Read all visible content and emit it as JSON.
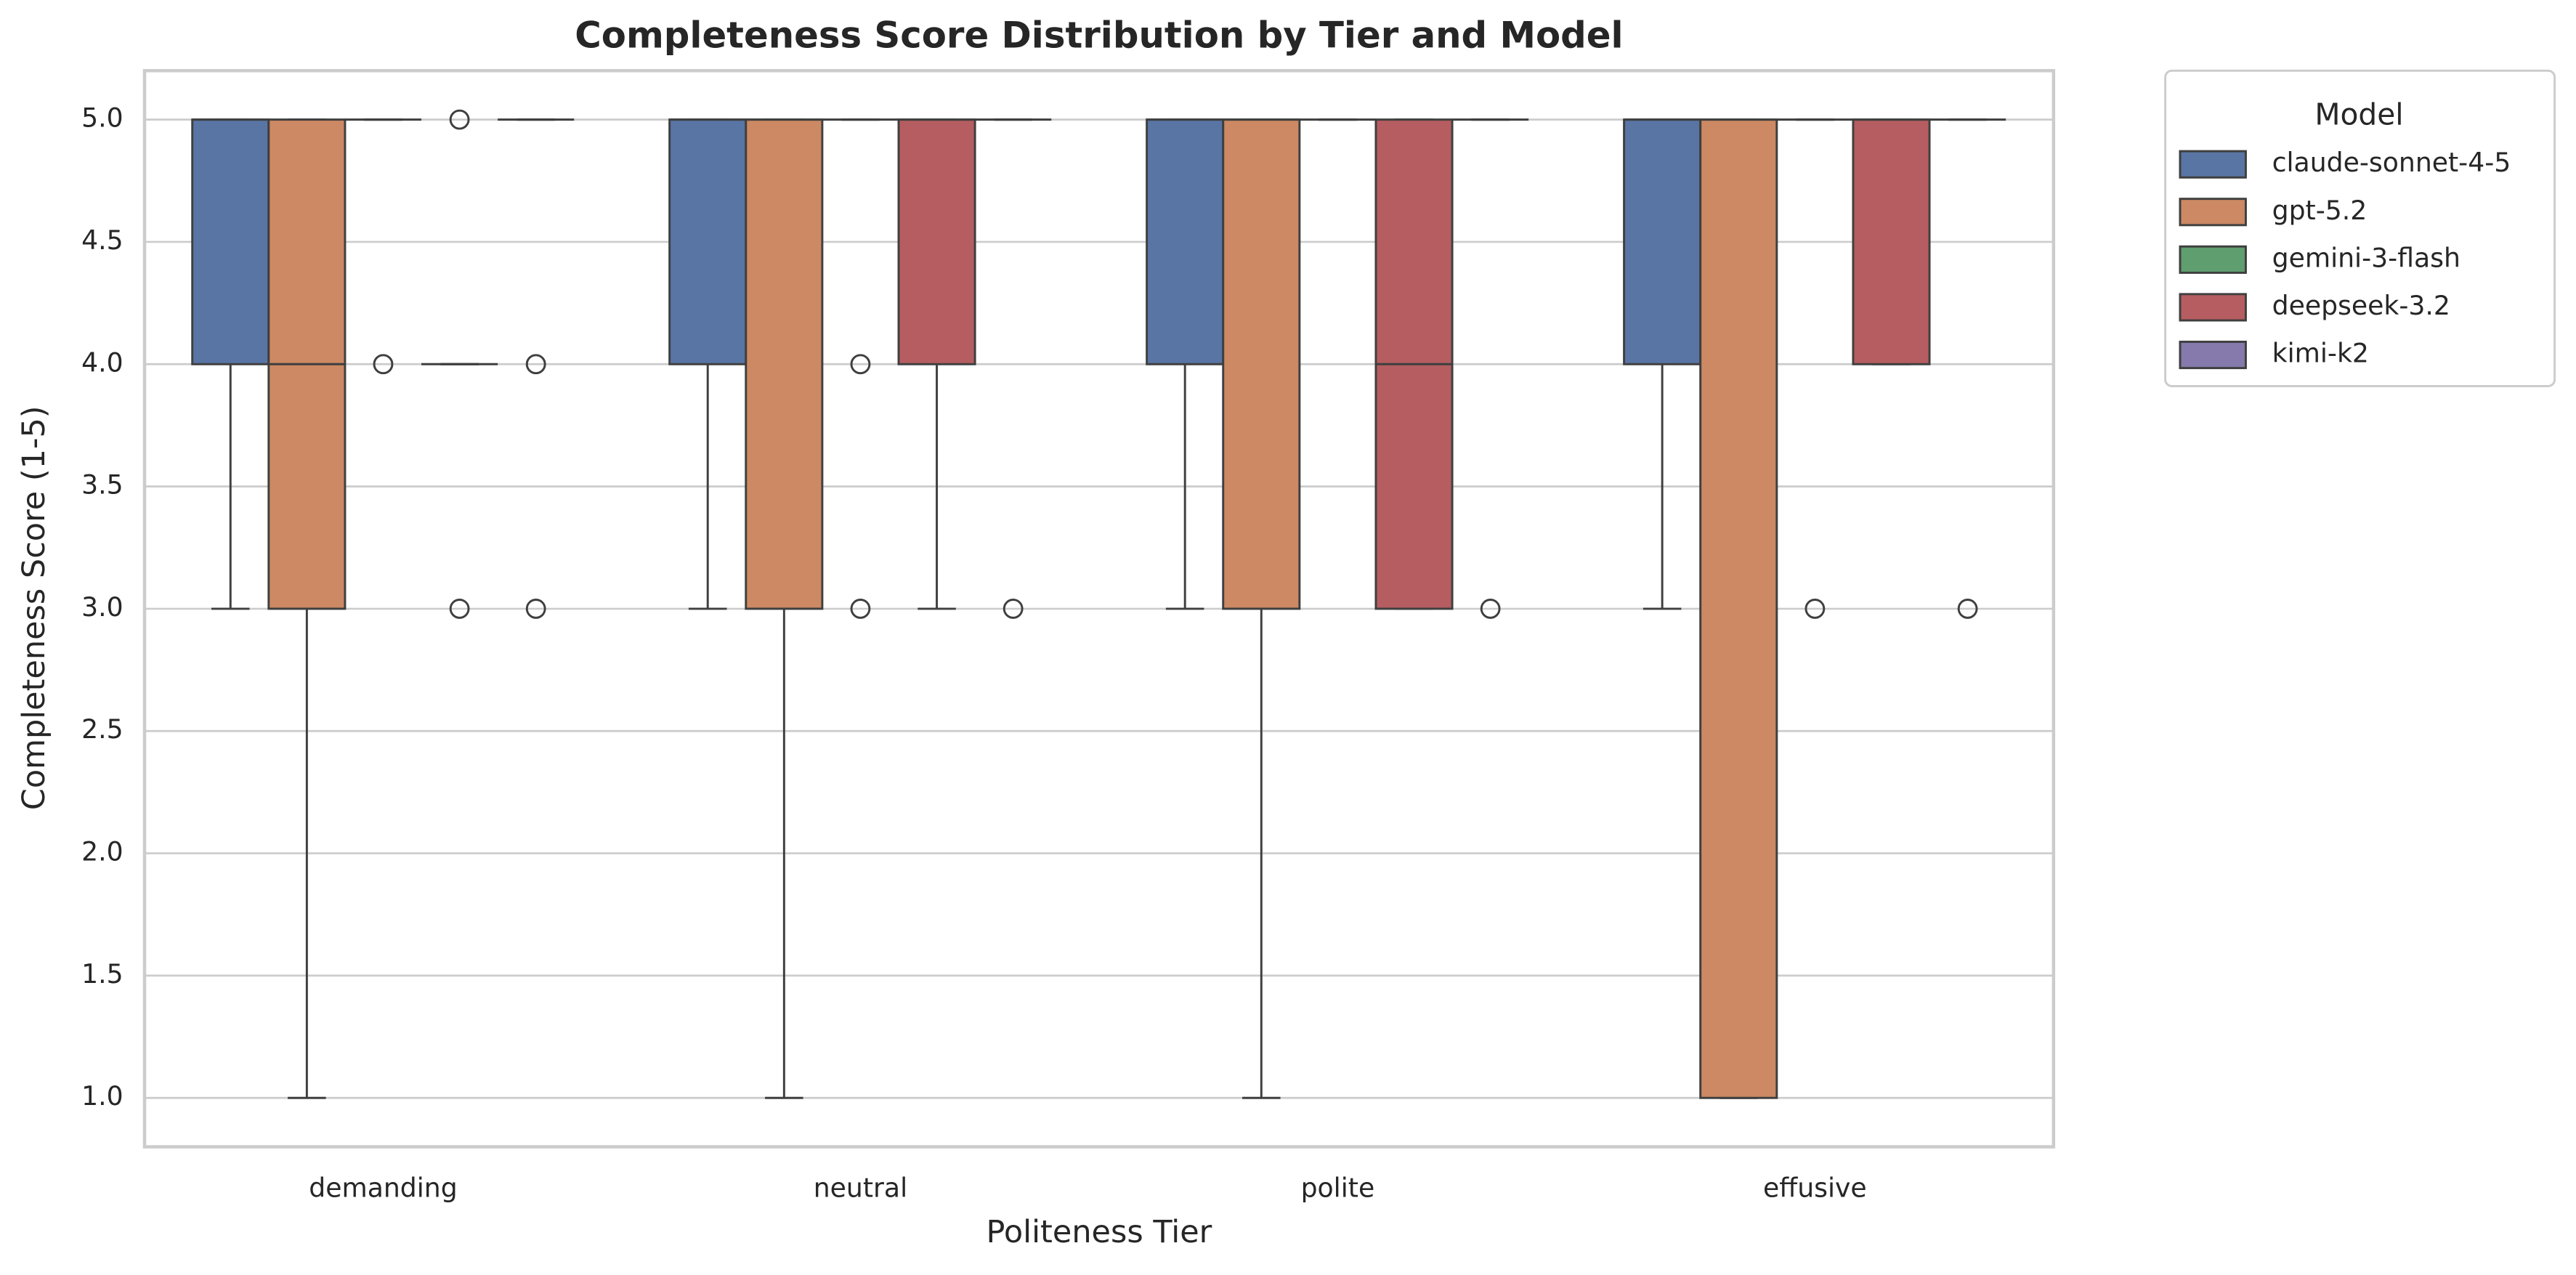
{
  "chart_data": {
    "type": "box",
    "title": "Completeness Score Distribution by Tier and Model",
    "xlabel": "Politeness Tier",
    "ylabel": "Completeness Score (1-5)",
    "legend_title": "Model",
    "legend": "outside upper right",
    "grid": true,
    "categories": [
      "demanding",
      "neutral",
      "polite",
      "effusive"
    ],
    "ylim": [
      0.8,
      5.2
    ],
    "yticks": [
      {
        "value": 1,
        "label": "1.0"
      },
      1.5,
      {
        "value": 2,
        "label": "2.0"
      },
      2.5,
      {
        "value": 3,
        "label": "3.0"
      },
      3.5,
      {
        "value": 4,
        "label": "4.0"
      },
      4.5,
      {
        "value": 5,
        "label": "5.0"
      }
    ],
    "series": [
      {
        "name": "claude-sonnet-4-5",
        "color": "#5875a4",
        "boxes": [
          {
            "min": 3,
            "q1": 4,
            "median": 5,
            "q3": 5,
            "max": 5,
            "outliers": []
          },
          {
            "min": 3,
            "q1": 4,
            "median": 5,
            "q3": 5,
            "max": 5,
            "outliers": []
          },
          {
            "min": 3,
            "q1": 4,
            "median": 5,
            "q3": 5,
            "max": 5,
            "outliers": []
          },
          {
            "min": 3,
            "q1": 4,
            "median": 5,
            "q3": 5,
            "max": 5,
            "outliers": []
          }
        ]
      },
      {
        "name": "gpt-5.2",
        "color": "#cc8963",
        "boxes": [
          {
            "min": 1,
            "q1": 3,
            "median": 4,
            "q3": 5,
            "max": 5,
            "outliers": []
          },
          {
            "min": 1,
            "q1": 3,
            "median": 5,
            "q3": 5,
            "max": 5,
            "outliers": []
          },
          {
            "min": 1,
            "q1": 3,
            "median": 5,
            "q3": 5,
            "max": 5,
            "outliers": []
          },
          {
            "min": 1,
            "q1": 1,
            "median": 5,
            "q3": 5,
            "max": 5,
            "outliers": []
          }
        ]
      },
      {
        "name": "gemini-3-flash",
        "color": "#5f9e6e",
        "boxes": [
          {
            "min": 5,
            "q1": 5,
            "median": 5,
            "q3": 5,
            "max": 5,
            "outliers": [
              4
            ]
          },
          {
            "min": 5,
            "q1": 5,
            "median": 5,
            "q3": 5,
            "max": 5,
            "outliers": [
              4,
              3
            ]
          },
          {
            "min": 5,
            "q1": 5,
            "median": 5,
            "q3": 5,
            "max": 5,
            "outliers": []
          },
          {
            "min": 5,
            "q1": 5,
            "median": 5,
            "q3": 5,
            "max": 5,
            "outliers": [
              3
            ]
          }
        ]
      },
      {
        "name": "deepseek-3.2",
        "color": "#b55d60",
        "boxes": [
          {
            "min": 4,
            "q1": 4,
            "median": 4,
            "q3": 4,
            "max": 4,
            "outliers": [
              5,
              3
            ]
          },
          {
            "min": 3,
            "q1": 4,
            "median": 5,
            "q3": 5,
            "max": 5,
            "outliers": []
          },
          {
            "min": 3,
            "q1": 3,
            "median": 4,
            "q3": 5,
            "max": 5,
            "outliers": []
          },
          {
            "min": 4,
            "q1": 4,
            "median": 5,
            "q3": 5,
            "max": 5,
            "outliers": []
          }
        ]
      },
      {
        "name": "kimi-k2",
        "color": "#857aab",
        "boxes": [
          {
            "min": 5,
            "q1": 5,
            "median": 5,
            "q3": 5,
            "max": 5,
            "outliers": [
              4,
              3
            ]
          },
          {
            "min": 5,
            "q1": 5,
            "median": 5,
            "q3": 5,
            "max": 5,
            "outliers": [
              3
            ]
          },
          {
            "min": 5,
            "q1": 5,
            "median": 5,
            "q3": 5,
            "max": 5,
            "outliers": [
              3
            ]
          },
          {
            "min": 5,
            "q1": 5,
            "median": 5,
            "q3": 5,
            "max": 5,
            "outliers": [
              3
            ]
          }
        ]
      }
    ]
  }
}
